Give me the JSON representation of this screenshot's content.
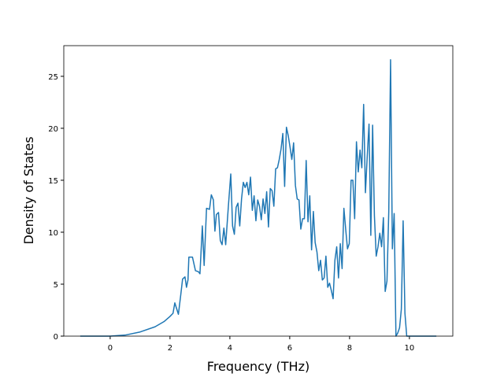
{
  "chart_data": {
    "type": "line",
    "x_label": "Frequency (THz)",
    "y_label": "Density of States",
    "x": [
      -1,
      0,
      0.5,
      1,
      1.5,
      1.8,
      2.0,
      2.1,
      2.16,
      2.28,
      2.36,
      2.42,
      2.5,
      2.55,
      2.6,
      2.63,
      2.75,
      2.85,
      2.95,
      3.0,
      3.08,
      3.14,
      3.22,
      3.32,
      3.38,
      3.45,
      3.5,
      3.55,
      3.62,
      3.68,
      3.74,
      3.8,
      3.86,
      3.95,
      4.03,
      4.09,
      4.15,
      4.21,
      4.27,
      4.33,
      4.39,
      4.45,
      4.51,
      4.57,
      4.63,
      4.69,
      4.75,
      4.81,
      4.87,
      4.93,
      4.99,
      5.05,
      5.11,
      5.17,
      5.23,
      5.29,
      5.35,
      5.41,
      5.47,
      5.53,
      5.59,
      5.65,
      5.71,
      5.77,
      5.83,
      5.89,
      5.95,
      6.01,
      6.07,
      6.13,
      6.19,
      6.25,
      6.31,
      6.37,
      6.43,
      6.49,
      6.55,
      6.61,
      6.67,
      6.73,
      6.79,
      6.85,
      6.91,
      6.97,
      7.03,
      7.09,
      7.15,
      7.21,
      7.27,
      7.33,
      7.39,
      7.45,
      7.51,
      7.57,
      7.63,
      7.69,
      7.75,
      7.81,
      7.87,
      7.93,
      7.99,
      8.05,
      8.11,
      8.17,
      8.23,
      8.29,
      8.35,
      8.41,
      8.47,
      8.53,
      8.59,
      8.65,
      8.71,
      8.77,
      8.83,
      8.89,
      8.95,
      9.01,
      9.07,
      9.13,
      9.19,
      9.25,
      9.31,
      9.37,
      9.43,
      9.49,
      9.55,
      9.61,
      9.67,
      9.73,
      9.79,
      9.85,
      9.91,
      10.9
    ],
    "series": [
      {
        "color": "#1f77b4",
        "values": [
          0,
          0,
          0.1,
          0.4,
          0.9,
          1.4,
          1.9,
          2.2,
          3.2,
          2.1,
          4,
          5.5,
          5.7,
          4.7,
          5.4,
          7.6,
          7.6,
          6.3,
          6.2,
          6.0,
          10.6,
          6.8,
          12.3,
          12.2,
          13.6,
          13.1,
          10.1,
          11.7,
          11.9,
          9.2,
          8.8,
          10.4,
          8.8,
          12.5,
          15.6,
          10.6,
          9.8,
          12.4,
          12.8,
          10.6,
          13.2,
          14.8,
          14.3,
          14.8,
          13.6,
          15.3,
          12.1,
          13.5,
          11.1,
          13.1,
          12.5,
          11.2,
          13.2,
          11.8,
          13.9,
          10.5,
          14.2,
          14.0,
          12.5,
          16.1,
          16.2,
          17.0,
          18.0,
          19.5,
          14.4,
          20.1,
          19.3,
          18.2,
          17.0,
          18.6,
          14.5,
          13.2,
          13.1,
          10.3,
          11.3,
          11.3,
          16.9,
          11.0,
          13.5,
          8.3,
          12.0,
          9.0,
          8.1,
          6.3,
          7.3,
          5.4,
          5.6,
          7.7,
          4.7,
          5.1,
          4.4,
          3.6,
          7.3,
          8.6,
          5.6,
          8.9,
          6.5,
          12.3,
          10.3,
          8.4,
          8.9,
          15.0,
          15.0,
          11.3,
          18.7,
          15.8,
          17.9,
          16.2,
          22.3,
          13.8,
          17.3,
          20.4,
          9.7,
          20.3,
          11.6,
          7.7,
          8.6,
          9.9,
          8.6,
          11.4,
          4.3,
          5.3,
          12.0,
          26.6,
          8.4,
          11.8,
          0,
          0.3,
          0.8,
          2.6,
          11.1,
          2.2,
          0,
          0
        ]
      }
    ],
    "xlim": [
      -1.55,
      11.45
    ],
    "xticks": [
      0,
      2,
      4,
      6,
      8,
      10
    ],
    "ylim": [
      0,
      27.95
    ],
    "yticks": [
      0,
      5,
      10,
      15,
      20,
      25
    ]
  }
}
